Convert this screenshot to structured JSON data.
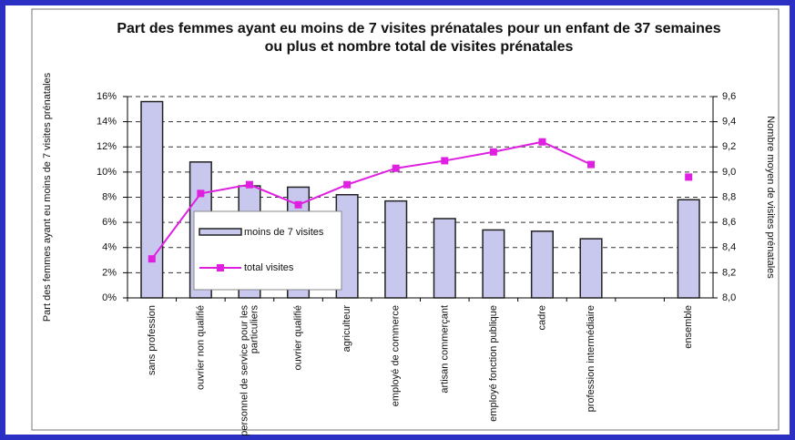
{
  "chart_data": {
    "type": "bar_line",
    "title": "Part des femmes ayant eu moins de 7 visites prénatales pour un enfant de 37 semaines ou plus et nombre total de visites prénatales",
    "y_label": "Part des femmes ayant eu moins de 7 visites prénatales",
    "y2_label": "Nombre moyen de visites prénatales",
    "categories": [
      "sans profession",
      "ouvrier non qualifié",
      "personnel de service pour les particuliers",
      "ouvrier qualifié",
      "agriculteur",
      "employé de commerce",
      "artisan commerçant",
      "employé fonction publique",
      "cadre",
      "profession intermédiaire",
      null,
      "ensemble"
    ],
    "series": [
      {
        "name": "moins de 7 visites",
        "color": "#c8c8ee",
        "values": [
          15.6,
          10.8,
          8.9,
          8.8,
          8.2,
          7.7,
          6.3,
          5.4,
          5.3,
          4.7,
          null,
          7.8
        ]
      },
      {
        "name": "total visites",
        "color": "#e020e0",
        "axis": "y2",
        "values": [
          8.31,
          8.83,
          8.9,
          8.74,
          8.9,
          9.03,
          9.09,
          9.16,
          9.24,
          9.06,
          null,
          8.96
        ]
      }
    ],
    "ylim": [
      0,
      16
    ],
    "yticks": [
      {
        "value": 0,
        "label": "0%"
      },
      {
        "value": 2,
        "label": "2%"
      },
      {
        "value": 4,
        "label": "4%"
      },
      {
        "value": 6,
        "label": "6%"
      },
      {
        "value": 8,
        "label": "8%"
      },
      {
        "value": 10,
        "label": "10%"
      },
      {
        "value": 12,
        "label": "12%"
      },
      {
        "value": 14,
        "label": "14%"
      },
      {
        "value": 16,
        "label": "16%"
      }
    ],
    "y2lim": [
      8.0,
      9.6
    ],
    "y2ticks": [
      {
        "value": 8.0,
        "label": "8,0"
      },
      {
        "value": 8.2,
        "label": "8,2"
      },
      {
        "value": 8.4,
        "label": "8,4"
      },
      {
        "value": 8.6,
        "label": "8,6"
      },
      {
        "value": 8.8,
        "label": "8,8"
      },
      {
        "value": 9.0,
        "label": "9,0"
      },
      {
        "value": 9.2,
        "label": "9,2"
      },
      {
        "value": 9.4,
        "label": "9,4"
      },
      {
        "value": 9.6,
        "label": "9,6"
      }
    ],
    "grid": true,
    "legend": "center-left"
  }
}
